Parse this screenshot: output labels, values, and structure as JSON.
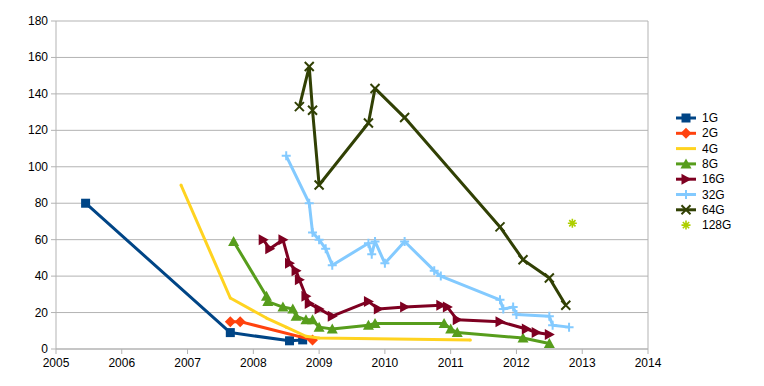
{
  "chart_data": {
    "type": "line",
    "xlim": [
      2005,
      2014
    ],
    "xticks": [
      2005,
      2006,
      2007,
      2008,
      2009,
      2010,
      2011,
      2012,
      2013,
      2014
    ],
    "ylim": [
      0,
      180
    ],
    "yticks": [
      0,
      20,
      40,
      60,
      80,
      100,
      120,
      140,
      160,
      180
    ],
    "grid": true,
    "legend": "right",
    "series": [
      {
        "name": "1G",
        "color": "#004586",
        "marker": "square",
        "x": [
          2005.45,
          2007.65,
          2008.55,
          2008.75
        ],
        "values": [
          80,
          9,
          4.5,
          5
        ]
      },
      {
        "name": "2G",
        "color": "#ff420e",
        "marker": "diamond",
        "x": [
          2007.65,
          2007.8,
          2008.9
        ],
        "values": [
          15,
          15,
          5
        ]
      },
      {
        "name": "4G",
        "color": "#ffd320",
        "marker": "none",
        "x": [
          2006.9,
          2007.65,
          2008.2,
          2008.5,
          2008.8,
          2009.0,
          2011.3
        ],
        "values": [
          90,
          28,
          17,
          12,
          7,
          6,
          5
        ]
      },
      {
        "name": "8G",
        "color": "#579d1c",
        "marker": "triangle",
        "x": [
          2007.7,
          2008.2,
          2008.22,
          2008.45,
          2008.6,
          2008.65,
          2008.8,
          2008.9,
          2009.0,
          2009.2,
          2009.75,
          2009.85,
          2010.9,
          2011.0,
          2011.1,
          2012.1,
          2012.5
        ],
        "values": [
          59,
          29,
          26,
          23,
          22,
          18,
          16,
          16,
          12,
          11,
          13,
          14,
          14,
          11,
          9,
          6,
          3
        ]
      },
      {
        "name": "16G",
        "color": "#7e0021",
        "marker": "triangle-right",
        "x": [
          2008.15,
          2008.25,
          2008.45,
          2008.55,
          2008.65,
          2008.7,
          2008.8,
          2008.85,
          2009.0,
          2009.2,
          2009.75,
          2009.9,
          2010.3,
          2010.85,
          2010.95,
          2011.1,
          2011.75,
          2012.15,
          2012.3,
          2012.5
        ],
        "values": [
          60,
          55,
          60,
          47,
          43,
          38,
          29,
          25,
          22,
          18,
          26,
          22,
          23,
          24,
          23,
          16,
          15,
          11,
          9,
          8
        ]
      },
      {
        "name": "32G",
        "color": "#83caff",
        "marker": "plus",
        "x": [
          2008.5,
          2008.85,
          2008.9,
          2009.0,
          2009.1,
          2009.2,
          2009.75,
          2009.8,
          2009.85,
          2010.0,
          2010.3,
          2010.75,
          2010.85,
          2011.75,
          2011.8,
          2011.95,
          2012.0,
          2012.5,
          2012.55,
          2012.8
        ],
        "values": [
          106,
          80,
          64,
          60,
          55,
          46,
          58,
          52,
          59,
          47,
          59,
          43,
          40,
          27,
          22,
          23,
          19,
          18,
          13,
          12
        ]
      },
      {
        "name": "64G",
        "color": "#314004",
        "marker": "x",
        "x": [
          2008.7,
          2008.85,
          2008.9,
          2009.0,
          2009.75,
          2009.85,
          2010.3,
          2011.75,
          2012.1,
          2012.5,
          2012.75
        ],
        "values": [
          133,
          155,
          131,
          90,
          124,
          143,
          127,
          67,
          49,
          39,
          24
        ]
      },
      {
        "name": "128G",
        "color": "#aecf00",
        "marker": "asterisk",
        "x": [
          2012.85
        ],
        "values": [
          69
        ]
      }
    ]
  }
}
